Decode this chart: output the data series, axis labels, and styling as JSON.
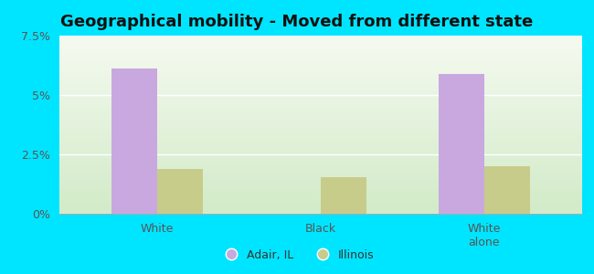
{
  "title": "Geographical mobility - Moved from different state",
  "categories": [
    "White",
    "Black",
    "White\nalone"
  ],
  "adair_values": [
    6.1,
    0.0,
    5.9
  ],
  "illinois_values": [
    1.9,
    1.55,
    2.0
  ],
  "adair_color": "#c9a8e0",
  "illinois_color": "#c8cc8a",
  "plot_bg_top": "#f5faf0",
  "plot_bg_bottom": "#d8edcc",
  "outer_background": "#00e5ff",
  "ylim": [
    0,
    7.5
  ],
  "yticks": [
    0,
    2.5,
    5.0,
    7.5
  ],
  "ytick_labels": [
    "0%",
    "2.5%",
    "5%",
    "7.5%"
  ],
  "legend_labels": [
    "Adair, IL",
    "Illinois"
  ],
  "bar_width": 0.28,
  "title_fontsize": 13,
  "tick_fontsize": 9,
  "legend_fontsize": 9
}
